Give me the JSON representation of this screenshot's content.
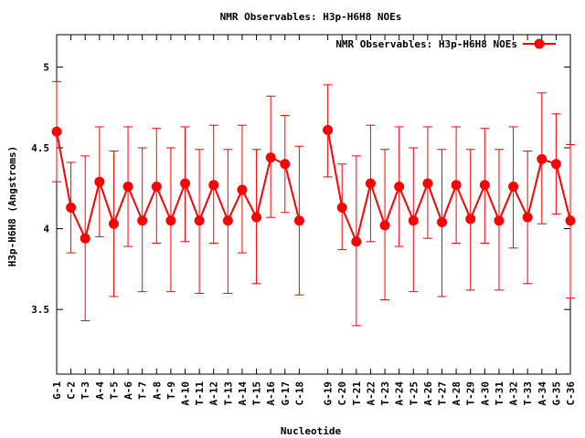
{
  "chart_data": {
    "type": "line",
    "title": "NMR Observables: H3p-H6H8 NOEs",
    "xlabel": "Nucleotide",
    "ylabel": "H3p-H6H8 (Angstroms)",
    "ylim": [
      3.1,
      5.2
    ],
    "yticks": [
      "3.5",
      "4",
      "4.5",
      "5"
    ],
    "grid": false,
    "legend_position": "top-right",
    "series": [
      {
        "name": "NMR Observables: H3p-H6H8 NOEs",
        "color": "#ff0000",
        "categories": [
          "G-1",
          "C-2",
          "T-3",
          "A-4",
          "T-5",
          "A-6",
          "T-7",
          "A-8",
          "T-9",
          "A-10",
          "T-11",
          "A-12",
          "T-13",
          "A-14",
          "T-15",
          "A-16",
          "G-17",
          "C-18"
        ],
        "values": [
          4.6,
          4.13,
          3.94,
          4.29,
          4.03,
          4.26,
          4.05,
          4.26,
          4.05,
          4.28,
          4.05,
          4.27,
          4.05,
          4.24,
          4.07,
          4.44,
          4.4,
          4.05
        ],
        "err_low": [
          4.29,
          3.85,
          3.43,
          3.95,
          3.58,
          3.89,
          3.61,
          3.91,
          3.61,
          3.92,
          3.6,
          3.91,
          3.6,
          3.85,
          3.66,
          4.07,
          4.1,
          3.59
        ],
        "err_high": [
          4.91,
          4.41,
          4.45,
          4.63,
          4.48,
          4.63,
          4.5,
          4.62,
          4.5,
          4.63,
          4.49,
          4.64,
          4.49,
          4.64,
          4.49,
          4.82,
          4.7,
          4.51
        ]
      },
      {
        "name": "",
        "color": "#ff0000",
        "categories": [
          "G-19",
          "C-20",
          "T-21",
          "A-22",
          "T-23",
          "A-24",
          "T-25",
          "A-26",
          "T-27",
          "A-28",
          "T-29",
          "A-30",
          "T-31",
          "A-32",
          "T-33",
          "A-34",
          "G-35",
          "C-36"
        ],
        "values": [
          4.61,
          4.13,
          3.92,
          4.28,
          4.02,
          4.26,
          4.05,
          4.28,
          4.04,
          4.27,
          4.06,
          4.27,
          4.05,
          4.26,
          4.07,
          4.43,
          4.4,
          4.05
        ],
        "err_low": [
          4.32,
          3.87,
          3.4,
          3.92,
          3.56,
          3.89,
          3.61,
          3.94,
          3.58,
          3.91,
          3.62,
          3.91,
          3.62,
          3.88,
          3.66,
          4.03,
          4.09,
          3.57
        ],
        "err_high": [
          4.89,
          4.4,
          4.45,
          4.64,
          4.49,
          4.63,
          4.5,
          4.63,
          4.49,
          4.63,
          4.49,
          4.62,
          4.49,
          4.63,
          4.48,
          4.84,
          4.71,
          4.52
        ]
      }
    ]
  }
}
